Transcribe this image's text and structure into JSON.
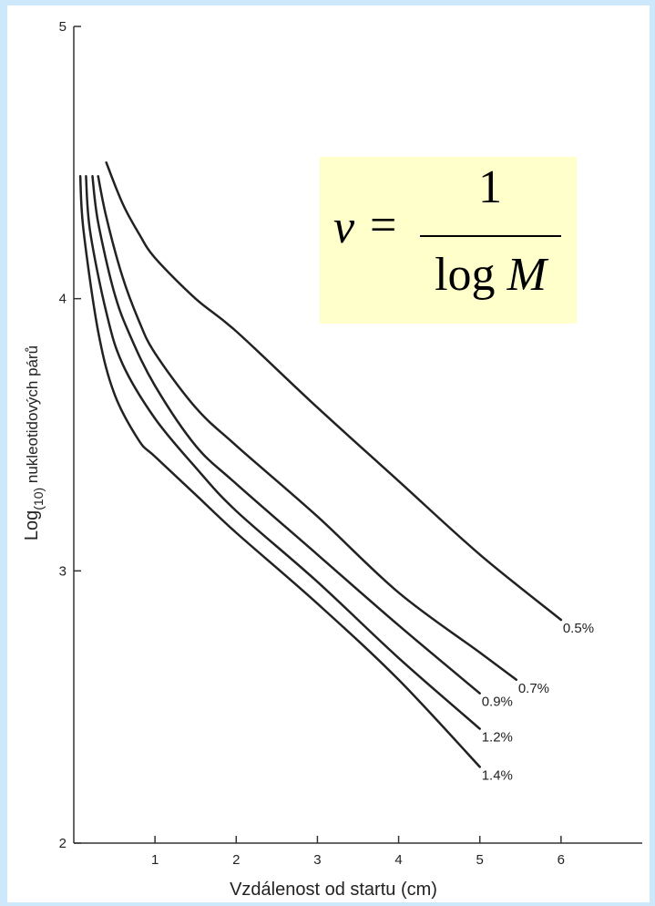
{
  "chart_data": {
    "type": "line",
    "xlabel": "Vzdálenost od startu (cm)",
    "ylabel": {
      "base": "Log",
      "sub": "(10)",
      "rest": " nukleotidových párů"
    },
    "xlim": [
      0,
      7
    ],
    "ylim": [
      2,
      5
    ],
    "x_ticks": [
      "1",
      "2",
      "3",
      "4",
      "5",
      "6"
    ],
    "y_ticks": [
      "2",
      "3",
      "4",
      "5"
    ],
    "grid": false,
    "series": [
      {
        "name": "0.5%",
        "points": [
          [
            0.4,
            4.5
          ],
          [
            0.6,
            4.35
          ],
          [
            0.8,
            4.24
          ],
          [
            1.0,
            4.15
          ],
          [
            1.5,
            4.0
          ],
          [
            2.0,
            3.88
          ],
          [
            3.0,
            3.6
          ],
          [
            4.0,
            3.33
          ],
          [
            5.0,
            3.06
          ],
          [
            6.0,
            2.82
          ]
        ]
      },
      {
        "name": "0.7%",
        "points": [
          [
            0.3,
            4.45
          ],
          [
            0.4,
            4.3
          ],
          [
            0.6,
            4.08
          ],
          [
            0.8,
            3.92
          ],
          [
            1.0,
            3.8
          ],
          [
            1.5,
            3.6
          ],
          [
            2.0,
            3.46
          ],
          [
            3.0,
            3.2
          ],
          [
            4.0,
            2.92
          ],
          [
            5.0,
            2.7
          ],
          [
            5.45,
            2.6
          ]
        ]
      },
      {
        "name": "0.9%",
        "points": [
          [
            0.23,
            4.45
          ],
          [
            0.3,
            4.28
          ],
          [
            0.5,
            4.02
          ],
          [
            0.7,
            3.86
          ],
          [
            1.0,
            3.68
          ],
          [
            1.5,
            3.46
          ],
          [
            2.0,
            3.32
          ],
          [
            3.0,
            3.06
          ],
          [
            4.0,
            2.8
          ],
          [
            5.0,
            2.55
          ]
        ]
      },
      {
        "name": "1.2%",
        "points": [
          [
            0.15,
            4.45
          ],
          [
            0.2,
            4.25
          ],
          [
            0.4,
            3.95
          ],
          [
            0.6,
            3.76
          ],
          [
            1.0,
            3.56
          ],
          [
            1.5,
            3.38
          ],
          [
            2.0,
            3.22
          ],
          [
            3.0,
            2.96
          ],
          [
            4.0,
            2.68
          ],
          [
            5.0,
            2.42
          ]
        ]
      },
      {
        "name": "1.4%",
        "points": [
          [
            0.08,
            4.45
          ],
          [
            0.12,
            4.25
          ],
          [
            0.3,
            3.88
          ],
          [
            0.5,
            3.65
          ],
          [
            0.8,
            3.48
          ],
          [
            1.0,
            3.42
          ],
          [
            1.5,
            3.28
          ],
          [
            2.0,
            3.14
          ],
          [
            3.0,
            2.88
          ],
          [
            4.0,
            2.6
          ],
          [
            5.0,
            2.28
          ]
        ]
      }
    ]
  },
  "formula": {
    "lhs": "v",
    "eq": "=",
    "numerator": "1",
    "den_text": "log",
    "den_var": "M"
  }
}
